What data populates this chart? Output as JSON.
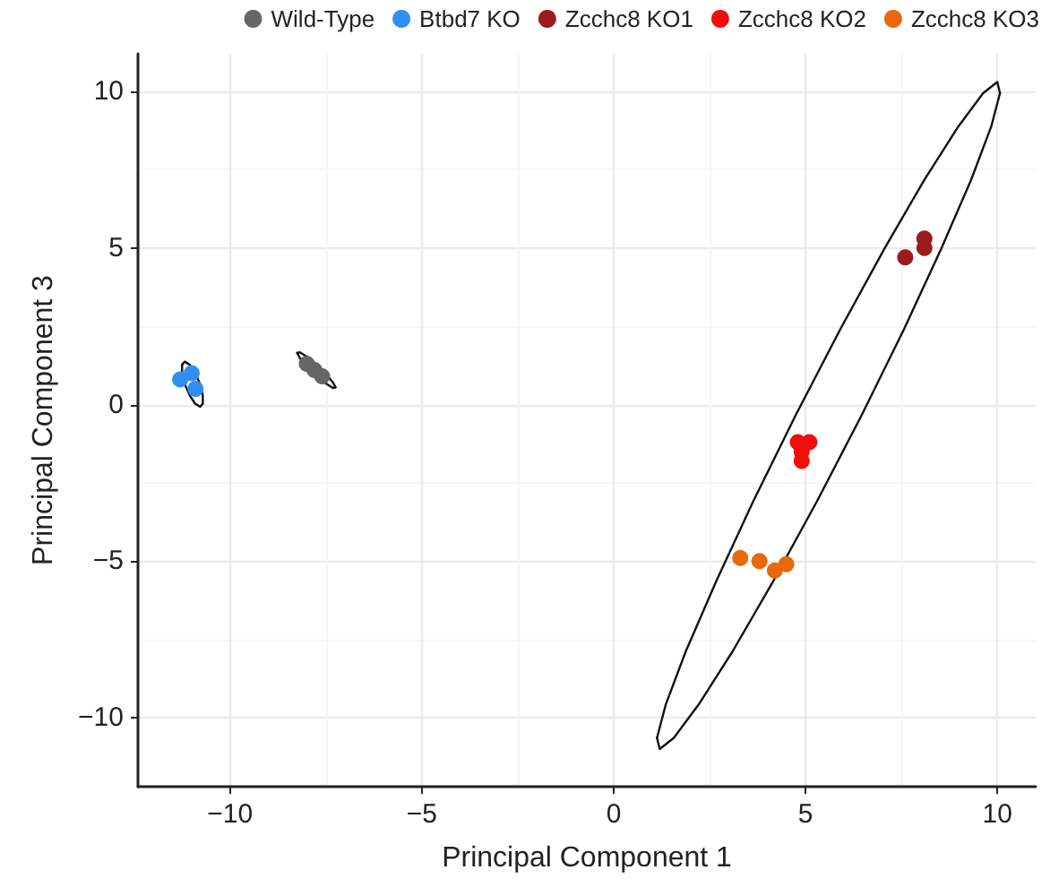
{
  "chart_data": {
    "type": "scatter",
    "xlabel": "Principal Component 1",
    "ylabel": "Principal Component 3",
    "xlim": [
      -12.4,
      11.0
    ],
    "ylim": [
      -12.2,
      11.2
    ],
    "xticks": [
      {
        "value": -10,
        "label": "−10"
      },
      {
        "value": -5,
        "label": "−5"
      },
      0,
      5,
      10
    ],
    "yticks": [
      {
        "value": -10,
        "label": "−10"
      },
      {
        "value": -5,
        "label": "−5"
      },
      0,
      5,
      10
    ],
    "grid": true,
    "legend": "top right",
    "marker": "circle",
    "series": [
      {
        "type": "line",
        "marker": "none",
        "color": "#111111",
        "x": [
          -8.25,
          -8.18,
          -8.0,
          -7.75,
          -7.5,
          -7.32,
          -7.25
        ],
        "values": [
          1.65,
          1.67,
          1.53,
          1.28,
          0.98,
          0.71,
          0.55
        ]
      },
      {
        "type": "line",
        "marker": "none",
        "color": "#111111",
        "x": [
          -8.25,
          -8.18,
          -8.0,
          -7.75,
          -7.5,
          -7.32,
          -7.25
        ],
        "values": [
          1.65,
          1.49,
          1.22,
          0.92,
          0.67,
          0.53,
          0.55
        ]
      },
      {
        "type": "line",
        "marker": "none",
        "color": "#111111",
        "x": [
          -11.25,
          -11.25,
          -11.18,
          -11.05,
          -10.91,
          -10.78,
          -10.71
        ],
        "values": [
          1.27,
          1.01,
          0.65,
          0.29,
          0.03,
          -0.07,
          0.03
        ]
      },
      {
        "type": "line",
        "marker": "none",
        "color": "#111111",
        "x": [
          -11.25,
          -11.18,
          -11.05,
          -10.91,
          -10.78,
          -10.71,
          -10.71
        ],
        "values": [
          1.27,
          1.37,
          1.27,
          1.01,
          0.65,
          0.29,
          0.03
        ]
      },
      {
        "type": "line",
        "marker": "none",
        "color": "#111111",
        "x": [
          1.13,
          1.2,
          1.57,
          2.22,
          3.1,
          4.14,
          5.29,
          6.46,
          7.57,
          8.54,
          9.32,
          9.84,
          10.07
        ],
        "values": [
          -10.64,
          -11.0,
          -10.64,
          -9.57,
          -7.88,
          -5.68,
          -3.11,
          -0.35,
          2.41,
          4.98,
          7.18,
          8.87,
          9.94
        ]
      },
      {
        "type": "line",
        "marker": "none",
        "color": "#111111",
        "x": [
          1.13,
          1.36,
          1.88,
          2.66,
          3.63,
          4.74,
          5.91,
          7.06,
          8.1,
          8.98,
          9.63,
          10.0,
          10.07
        ],
        "values": [
          -10.64,
          -9.57,
          -7.88,
          -5.68,
          -3.11,
          -0.35,
          2.41,
          4.98,
          7.18,
          8.87,
          9.94,
          10.3,
          9.94
        ]
      },
      {
        "name": "Wild-Type",
        "color": "#666666",
        "x": [
          -8.0,
          -7.8,
          -7.6
        ],
        "values": [
          1.3,
          1.1,
          0.9
        ]
      },
      {
        "name": "Btbd7 KO",
        "color": "#2e8fef",
        "x": [
          -11.3,
          -11.0,
          -10.9
        ],
        "values": [
          0.8,
          1.0,
          0.5
        ]
      },
      {
        "name": "Zcchc8 KO1",
        "color": "#9b1b1f",
        "x": [
          7.6,
          8.1,
          8.1
        ],
        "values": [
          4.7,
          5.3,
          5.0
        ]
      },
      {
        "name": "Zcchc8 KO2",
        "color": "#f20d0d",
        "x": [
          4.8,
          5.1,
          4.9,
          4.9
        ],
        "values": [
          -1.2,
          -1.2,
          -1.8,
          -1.5
        ]
      },
      {
        "name": "Zcchc8 KO3",
        "color": "#e8690c",
        "x": [
          3.3,
          3.8,
          4.2,
          4.5
        ],
        "values": [
          -4.9,
          -5.0,
          -5.3,
          -5.1
        ]
      }
    ]
  }
}
